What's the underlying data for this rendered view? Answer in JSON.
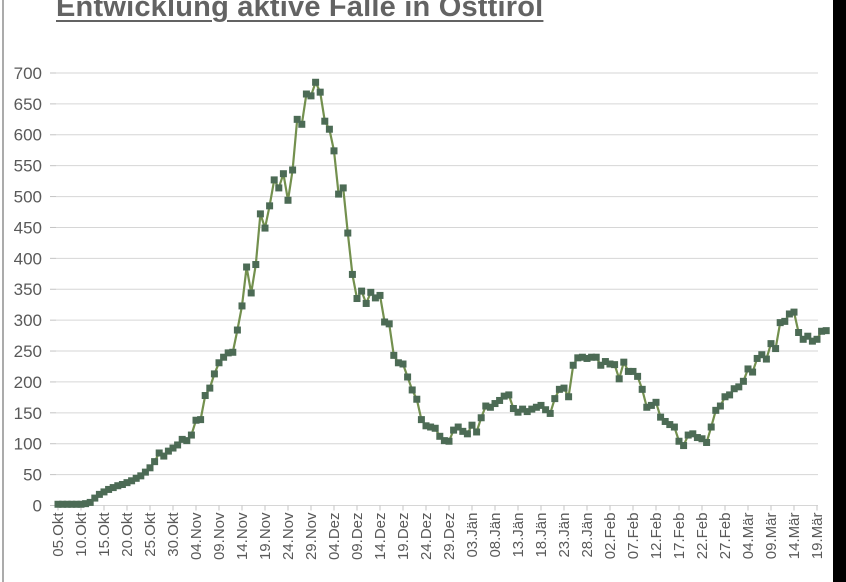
{
  "page": {
    "title": "Entwicklung aktive Fälle in Osttirol"
  },
  "chart_data": {
    "type": "line",
    "title": "Entwicklung aktive Fälle in Osttirol",
    "grid": "horizontal",
    "legend": "none",
    "ylim": [
      0,
      700
    ],
    "y_tick_step": 50,
    "y_ticks": [
      0,
      50,
      100,
      150,
      200,
      250,
      300,
      350,
      400,
      450,
      500,
      550,
      600,
      650,
      700
    ],
    "x_tick_step_days": 5,
    "x_tick_labels": [
      "05.Okt",
      "10.Okt",
      "15.Okt",
      "20.Okt",
      "25.Okt",
      "30.Okt",
      "04.Nov",
      "09.Nov",
      "14.Nov",
      "19.Nov",
      "24.Nov",
      "29.Nov",
      "04.Dez",
      "09.Dez",
      "14.Dez",
      "19.Dez",
      "24.Dez",
      "29.Dez",
      "03.Jän",
      "08.Jän",
      "13.Jän",
      "18.Jän",
      "23.Jän",
      "28.Jän",
      "02.Feb",
      "07.Feb",
      "12.Feb",
      "17.Feb",
      "22.Feb",
      "27.Feb",
      "04.Mär",
      "09.Mär",
      "14.Mär",
      "19.Mär"
    ],
    "series": [
      {
        "marker": "square",
        "values": [
          2,
          2,
          2,
          2,
          2,
          2,
          3,
          5,
          12,
          18,
          22,
          26,
          29,
          32,
          34,
          37,
          40,
          44,
          48,
          54,
          61,
          71,
          85,
          80,
          88,
          93,
          98,
          107,
          105,
          114,
          138,
          139,
          178,
          190,
          213,
          231,
          240,
          247,
          248,
          284,
          323,
          386,
          344,
          390,
          472,
          449,
          485,
          527,
          514,
          537,
          494,
          543,
          625,
          617,
          666,
          663,
          685,
          669,
          622,
          609,
          574,
          504,
          514,
          441,
          374,
          335,
          347,
          327,
          345,
          336,
          340,
          297,
          294,
          243,
          231,
          229,
          208,
          187,
          172,
          139,
          129,
          127,
          125,
          112,
          105,
          104,
          122,
          127,
          120,
          116,
          130,
          119,
          142,
          161,
          159,
          165,
          170,
          177,
          179,
          157,
          151,
          156,
          152,
          156,
          159,
          162,
          155,
          149,
          173,
          188,
          190,
          176,
          227,
          239,
          240,
          238,
          240,
          240,
          227,
          233,
          229,
          228,
          205,
          232,
          217,
          217,
          209,
          188,
          159,
          162,
          167,
          143,
          136,
          131,
          127,
          104,
          97,
          114,
          116,
          110,
          108,
          102,
          127,
          154,
          161,
          176,
          179,
          189,
          192,
          201,
          221,
          216,
          238,
          244,
          237,
          262,
          254,
          296,
          298,
          310,
          313,
          280,
          269,
          274,
          266,
          269,
          282,
          283
        ]
      }
    ],
    "colors": {
      "line": "#73904e",
      "marker": "#4c6b55",
      "gridline": "#d6d6d6",
      "tick": "#c3c3c3",
      "axis_text": "#595959",
      "title_text": "#636363",
      "page_border": "#ababab",
      "right_band": "#000000"
    }
  }
}
